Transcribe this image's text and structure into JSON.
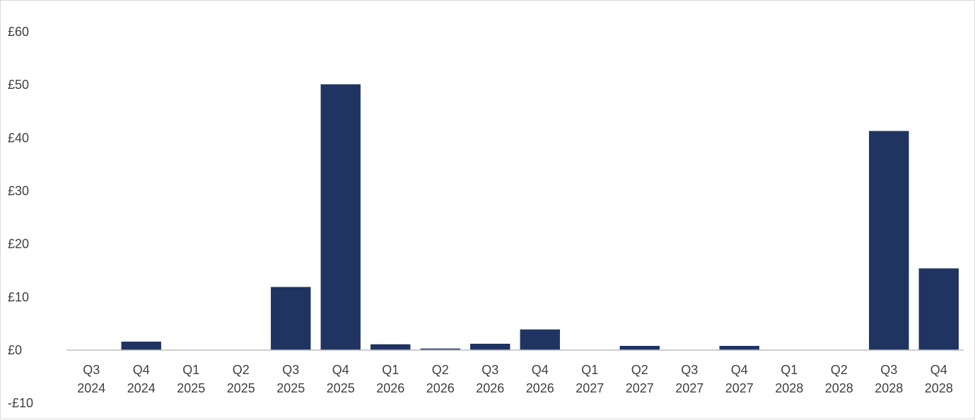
{
  "chart_data": {
    "type": "bar",
    "title": "",
    "xlabel": "",
    "ylabel": "",
    "ylim": [
      -10,
      60
    ],
    "y_ticks": [
      60,
      50,
      40,
      30,
      20,
      10,
      0,
      -10
    ],
    "y_tick_labels": [
      "£60",
      "£50",
      "£40",
      "£30",
      "£20",
      "£10",
      "£0",
      "-£10"
    ],
    "categories": [
      [
        "Q3",
        "2024"
      ],
      [
        "Q4",
        "2024"
      ],
      [
        "Q1",
        "2025"
      ],
      [
        "Q2",
        "2025"
      ],
      [
        "Q3",
        "2025"
      ],
      [
        "Q4",
        "2025"
      ],
      [
        "Q1",
        "2026"
      ],
      [
        "Q2",
        "2026"
      ],
      [
        "Q3",
        "2026"
      ],
      [
        "Q4",
        "2026"
      ],
      [
        "Q1",
        "2027"
      ],
      [
        "Q2",
        "2027"
      ],
      [
        "Q3",
        "2027"
      ],
      [
        "Q4",
        "2027"
      ],
      [
        "Q1",
        "2028"
      ],
      [
        "Q2",
        "2028"
      ],
      [
        "Q3",
        "2028"
      ],
      [
        "Q4",
        "2028"
      ]
    ],
    "values": [
      0,
      1.6,
      0,
      0,
      11.9,
      50.1,
      1.1,
      0.3,
      1.2,
      3.9,
      0,
      0.8,
      0,
      0.8,
      0,
      0,
      41.3,
      15.4
    ],
    "grid": false,
    "legend": "none",
    "bar_color": "#1f3461"
  }
}
